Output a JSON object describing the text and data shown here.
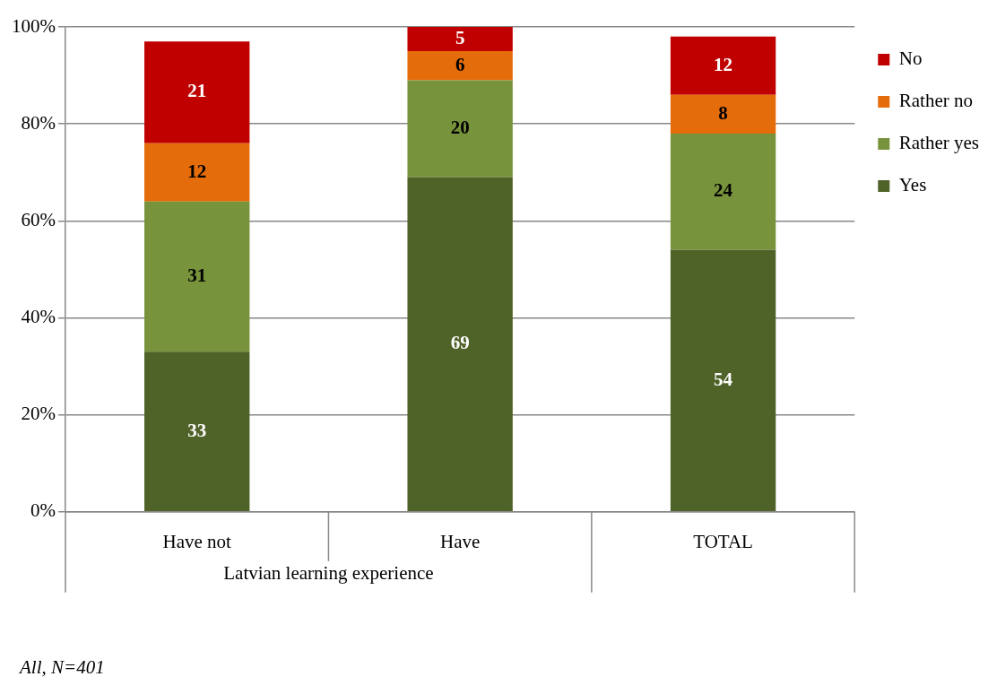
{
  "chart_data": {
    "type": "bar",
    "stacked": true,
    "categories": [
      "Have not",
      "Have",
      "TOTAL"
    ],
    "series": [
      {
        "name": "Yes",
        "color": "#4f6228",
        "values": [
          33,
          69,
          54
        ]
      },
      {
        "name": "Rather yes",
        "color": "#77933c",
        "values": [
          31,
          20,
          24
        ]
      },
      {
        "name": "Rather no",
        "color": "#e46c0a",
        "values": [
          12,
          6,
          8
        ]
      },
      {
        "name": "No",
        "color": "#c00000",
        "values": [
          21,
          5,
          12
        ]
      }
    ],
    "ylim": [
      0,
      100
    ],
    "yticks": [
      {
        "value": 0,
        "label": "0%"
      },
      {
        "value": 20,
        "label": "20%"
      },
      {
        "value": 40,
        "label": "40%"
      },
      {
        "value": 60,
        "label": "60%"
      },
      {
        "value": 80,
        "label": "80%"
      },
      {
        "value": 100,
        "label": "100%"
      }
    ],
    "grid": "y",
    "legend": "right",
    "data_labels": true,
    "xlabel": "Latvian learning experience",
    "annotations": [
      "All, N=401"
    ]
  }
}
